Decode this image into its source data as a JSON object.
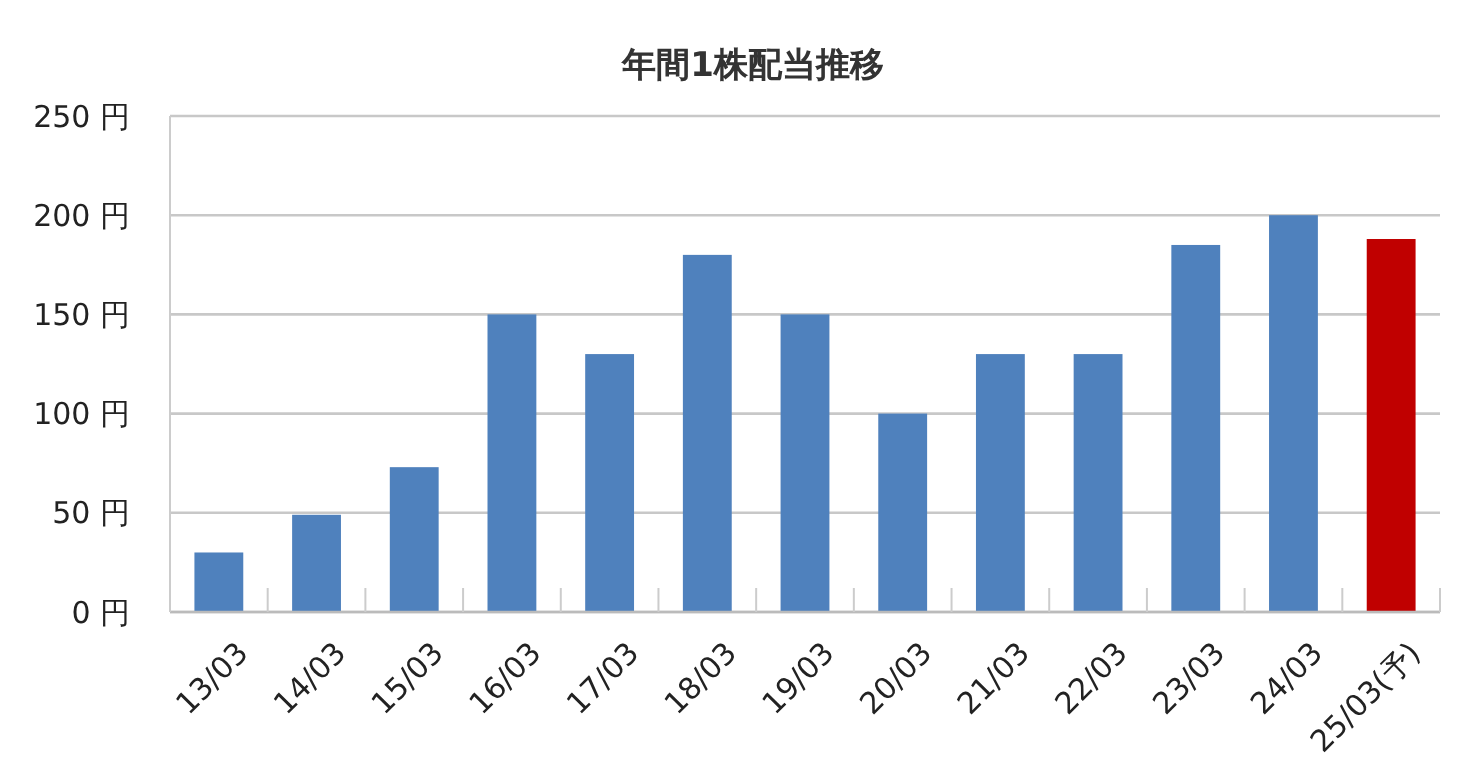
{
  "chart_data": {
    "type": "bar",
    "title": "年間1株配当推移",
    "categories": [
      "13/03",
      "14/03",
      "15/03",
      "16/03",
      "17/03",
      "18/03",
      "19/03",
      "20/03",
      "21/03",
      "22/03",
      "23/03",
      "24/03",
      "25/03(予)"
    ],
    "values": [
      30,
      49,
      73,
      150,
      130,
      180,
      150,
      100,
      130,
      130,
      185,
      200,
      188
    ],
    "colors": [
      "#4f81bd",
      "#4f81bd",
      "#4f81bd",
      "#4f81bd",
      "#4f81bd",
      "#4f81bd",
      "#4f81bd",
      "#4f81bd",
      "#4f81bd",
      "#4f81bd",
      "#4f81bd",
      "#4f81bd",
      "#c00000"
    ],
    "ylim": [
      0,
      250
    ],
    "yticks": [
      {
        "value": 0,
        "label": "0 円"
      },
      {
        "value": 50,
        "label": "50 円"
      },
      {
        "value": 100,
        "label": "100 円"
      },
      {
        "value": 150,
        "label": "150 円"
      },
      {
        "value": 200,
        "label": "200 円"
      },
      {
        "value": 250,
        "label": "250 円"
      }
    ],
    "grid": "y"
  }
}
